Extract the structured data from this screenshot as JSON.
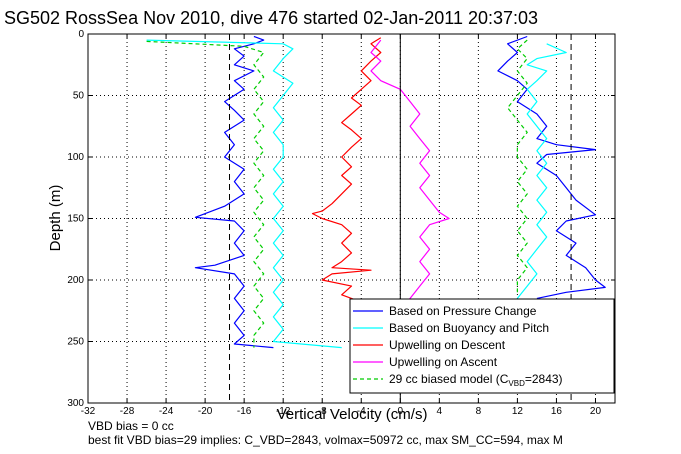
{
  "chart_data": {
    "type": "line",
    "title": "SG502 RossSea Nov 2010, dive 476 started 02-Jan-2011 20:37:03",
    "xlabel": "Vertical Velocity (cm/s)",
    "ylabel": "Depth (m)",
    "xlim": [
      -32,
      22
    ],
    "ylim": [
      300,
      0
    ],
    "y_reversed": true,
    "grid": true,
    "x_ticks": [
      -32,
      -28,
      -24,
      -20,
      -16,
      -12,
      -8,
      -4,
      0,
      4,
      8,
      12,
      16,
      20
    ],
    "y_ticks": [
      0,
      50,
      100,
      150,
      200,
      250,
      300
    ],
    "legend_position": "bottom-right",
    "legend": [
      {
        "label": "Based on Pressure Change",
        "color": "#0000ff",
        "dash": false
      },
      {
        "label": "Based on Buoyancy and Pitch",
        "color": "#00ffff",
        "dash": false
      },
      {
        "label": "Upwelling on Descent",
        "color": "#ff0000",
        "dash": false
      },
      {
        "label": "Upwelling on Ascent",
        "color": "#ff00ff",
        "dash": false
      },
      {
        "label": "29 cc biased model (C",
        "label_sub": "VBD",
        "label_tail": "=2843)",
        "color": "#00cc00",
        "dash": true
      }
    ],
    "vertical_lines": [
      {
        "x": -17.5,
        "style": "dashed",
        "color": "#000000"
      },
      {
        "x": 0,
        "style": "solid",
        "color": "#000000"
      },
      {
        "x": 17.5,
        "style": "dashed",
        "color": "#000000"
      }
    ],
    "series": [
      {
        "key": "pressure_descent",
        "color": "#0000ff",
        "dash": false,
        "points": [
          [
            -15,
            2
          ],
          [
            -14,
            5
          ],
          [
            -15,
            8
          ],
          [
            -17,
            12
          ],
          [
            -16,
            18
          ],
          [
            -17,
            25
          ],
          [
            -15,
            30
          ],
          [
            -17,
            38
          ],
          [
            -16,
            45
          ],
          [
            -18,
            55
          ],
          [
            -17,
            62
          ],
          [
            -16,
            70
          ],
          [
            -18,
            80
          ],
          [
            -17,
            90
          ],
          [
            -18,
            100
          ],
          [
            -16,
            110
          ],
          [
            -17,
            120
          ],
          [
            -16,
            130
          ],
          [
            -18,
            140
          ],
          [
            -21,
            149
          ],
          [
            -17,
            152
          ],
          [
            -16,
            160
          ],
          [
            -17,
            170
          ],
          [
            -16,
            180
          ],
          [
            -19,
            188
          ],
          [
            -21,
            190
          ],
          [
            -17,
            195
          ],
          [
            -16,
            205
          ],
          [
            -17,
            215
          ],
          [
            -16,
            225
          ],
          [
            -17,
            235
          ],
          [
            -16,
            245
          ],
          [
            -17,
            252
          ],
          [
            -13,
            255
          ]
        ]
      },
      {
        "key": "pressure_ascent",
        "color": "#0000ff",
        "dash": false,
        "points": [
          [
            13,
            2
          ],
          [
            11,
            8
          ],
          [
            12,
            15
          ],
          [
            11,
            22
          ],
          [
            10,
            30
          ],
          [
            12,
            38
          ],
          [
            13,
            45
          ],
          [
            12,
            55
          ],
          [
            14,
            65
          ],
          [
            15,
            75
          ],
          [
            14,
            85
          ],
          [
            16,
            90
          ],
          [
            20,
            94
          ],
          [
            15,
            98
          ],
          [
            14,
            105
          ],
          [
            16,
            115
          ],
          [
            17,
            125
          ],
          [
            18,
            135
          ],
          [
            20,
            147
          ],
          [
            17,
            152
          ],
          [
            16,
            160
          ],
          [
            18,
            170
          ],
          [
            17,
            180
          ],
          [
            19,
            190
          ],
          [
            20,
            200
          ],
          [
            21,
            206
          ],
          [
            17,
            210
          ],
          [
            14,
            215
          ]
        ]
      },
      {
        "key": "buoyancy_descent",
        "color": "#00ffff",
        "dash": false,
        "points": [
          [
            -26,
            5
          ],
          [
            -12,
            8
          ],
          [
            -11,
            12
          ],
          [
            -12,
            20
          ],
          [
            -13,
            30
          ],
          [
            -11,
            40
          ],
          [
            -12,
            50
          ],
          [
            -13,
            60
          ],
          [
            -12,
            70
          ],
          [
            -13,
            80
          ],
          [
            -12,
            90
          ],
          [
            -12,
            100
          ],
          [
            -13,
            110
          ],
          [
            -12,
            120
          ],
          [
            -13,
            130
          ],
          [
            -12,
            140
          ],
          [
            -13,
            150
          ],
          [
            -12,
            160
          ],
          [
            -13,
            170
          ],
          [
            -12,
            180
          ],
          [
            -13,
            190
          ],
          [
            -12,
            200
          ],
          [
            -13,
            210
          ],
          [
            -12,
            220
          ],
          [
            -13,
            230
          ],
          [
            -12,
            240
          ],
          [
            -13,
            250
          ],
          [
            -6,
            255
          ]
        ]
      },
      {
        "key": "buoyancy_ascent",
        "color": "#00ffff",
        "dash": false,
        "points": [
          [
            15,
            8
          ],
          [
            17,
            15
          ],
          [
            14,
            20
          ],
          [
            13,
            25
          ],
          [
            15,
            30
          ],
          [
            14,
            38
          ],
          [
            13,
            45
          ],
          [
            14,
            55
          ],
          [
            13,
            65
          ],
          [
            14,
            75
          ],
          [
            15,
            85
          ],
          [
            14,
            95
          ],
          [
            15,
            105
          ],
          [
            14,
            115
          ],
          [
            15,
            125
          ],
          [
            14,
            135
          ],
          [
            15,
            145
          ],
          [
            14,
            155
          ],
          [
            15,
            165
          ],
          [
            14,
            175
          ],
          [
            13,
            185
          ],
          [
            14,
            195
          ],
          [
            13,
            205
          ],
          [
            12,
            215
          ]
        ]
      },
      {
        "key": "model_descent",
        "color": "#00cc00",
        "dash": true,
        "points": [
          [
            -26,
            6
          ],
          [
            -16,
            10
          ],
          [
            -14,
            15
          ],
          [
            -15,
            25
          ],
          [
            -14,
            35
          ],
          [
            -15,
            45
          ],
          [
            -14,
            55
          ],
          [
            -15,
            65
          ],
          [
            -14,
            75
          ],
          [
            -15,
            85
          ],
          [
            -14,
            95
          ],
          [
            -15,
            105
          ],
          [
            -14,
            115
          ],
          [
            -15,
            125
          ],
          [
            -14,
            135
          ],
          [
            -15,
            145
          ],
          [
            -14,
            155
          ],
          [
            -15,
            165
          ],
          [
            -14,
            175
          ],
          [
            -15,
            185
          ],
          [
            -14,
            195
          ],
          [
            -15,
            205
          ],
          [
            -14,
            215
          ],
          [
            -15,
            225
          ],
          [
            -14,
            235
          ],
          [
            -15,
            245
          ],
          [
            -15,
            255
          ]
        ]
      },
      {
        "key": "model_ascent",
        "color": "#00cc00",
        "dash": true,
        "points": [
          [
            13,
            5
          ],
          [
            12,
            12
          ],
          [
            13,
            20
          ],
          [
            12,
            30
          ],
          [
            13,
            40
          ],
          [
            12,
            50
          ],
          [
            11,
            60
          ],
          [
            12,
            70
          ],
          [
            13,
            80
          ],
          [
            12,
            90
          ],
          [
            12,
            100
          ],
          [
            13,
            110
          ],
          [
            12,
            120
          ],
          [
            13,
            130
          ],
          [
            12,
            140
          ],
          [
            13,
            150
          ],
          [
            12,
            160
          ],
          [
            13,
            170
          ],
          [
            12,
            180
          ],
          [
            13,
            190
          ],
          [
            12,
            200
          ],
          [
            12,
            210
          ]
        ]
      },
      {
        "key": "upwelling_descent",
        "color": "#ff0000",
        "dash": false,
        "points": [
          [
            -2,
            3
          ],
          [
            -3,
            8
          ],
          [
            -2,
            15
          ],
          [
            -3,
            22
          ],
          [
            -4,
            30
          ],
          [
            -3,
            38
          ],
          [
            -4,
            45
          ],
          [
            -5,
            52
          ],
          [
            -4,
            58
          ],
          [
            -5,
            65
          ],
          [
            -6,
            72
          ],
          [
            -5,
            78
          ],
          [
            -4,
            85
          ],
          [
            -5,
            92
          ],
          [
            -6,
            100
          ],
          [
            -5,
            108
          ],
          [
            -6,
            115
          ],
          [
            -5,
            122
          ],
          [
            -6,
            130
          ],
          [
            -7,
            138
          ],
          [
            -8,
            144
          ],
          [
            -9,
            146
          ],
          [
            -8,
            150
          ],
          [
            -6,
            155
          ],
          [
            -5,
            162
          ],
          [
            -6,
            170
          ],
          [
            -5,
            178
          ],
          [
            -6,
            185
          ],
          [
            -7,
            190
          ],
          [
            -3,
            192
          ],
          [
            -7,
            195
          ],
          [
            -8,
            200
          ],
          [
            -5,
            205
          ],
          [
            -6,
            212
          ],
          [
            -4,
            218
          ],
          [
            -3,
            225
          ]
        ]
      },
      {
        "key": "upwelling_ascent",
        "color": "#ff00ff",
        "dash": false,
        "points": [
          [
            -2,
            5
          ],
          [
            -3,
            15
          ],
          [
            -2,
            22
          ],
          [
            -3,
            30
          ],
          [
            -2,
            38
          ],
          [
            0,
            45
          ],
          [
            1,
            55
          ],
          [
            2,
            65
          ],
          [
            1,
            75
          ],
          [
            2,
            85
          ],
          [
            3,
            95
          ],
          [
            2,
            105
          ],
          [
            3,
            115
          ],
          [
            2,
            125
          ],
          [
            3,
            135
          ],
          [
            4,
            145
          ],
          [
            5,
            150
          ],
          [
            3,
            155
          ],
          [
            2,
            165
          ],
          [
            3,
            175
          ],
          [
            2,
            185
          ],
          [
            3,
            195
          ],
          [
            2,
            205
          ],
          [
            1,
            215
          ],
          [
            0,
            225
          ]
        ]
      }
    ]
  },
  "notes": {
    "line1": "VBD bias = 0 cc",
    "line2": "best fit VBD bias=29 implies: C_VBD=2843, volmax=50972 cc, max SM_CC=594, max M"
  }
}
